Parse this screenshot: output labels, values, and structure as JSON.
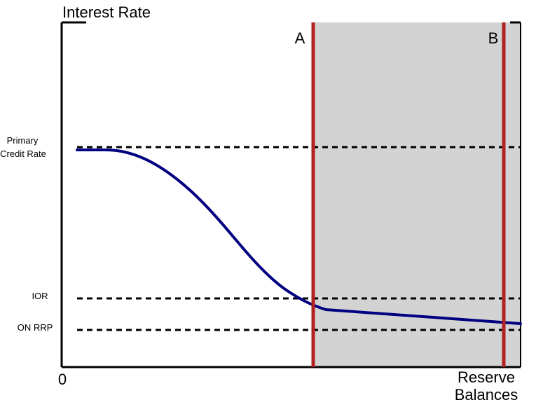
{
  "title": "Interest Rate",
  "x_axis": {
    "origin_label": "0",
    "label_line1": "Reserve",
    "label_line2": "Balances"
  },
  "rate_levels": {
    "primary_credit": {
      "label_line1": "Primary",
      "label_line2": "Credit Rate"
    },
    "ior": {
      "label": "IOR"
    },
    "on_rrp": {
      "label": "ON RRP"
    }
  },
  "markers": {
    "a": {
      "label": "A"
    },
    "b": {
      "label": "B"
    }
  },
  "colors": {
    "demand_curve": "#000080",
    "marker_lines": "#b22222",
    "shaded_region": "#d3d3d3",
    "dashed_lines": "#000000",
    "axes": "#000000"
  }
}
